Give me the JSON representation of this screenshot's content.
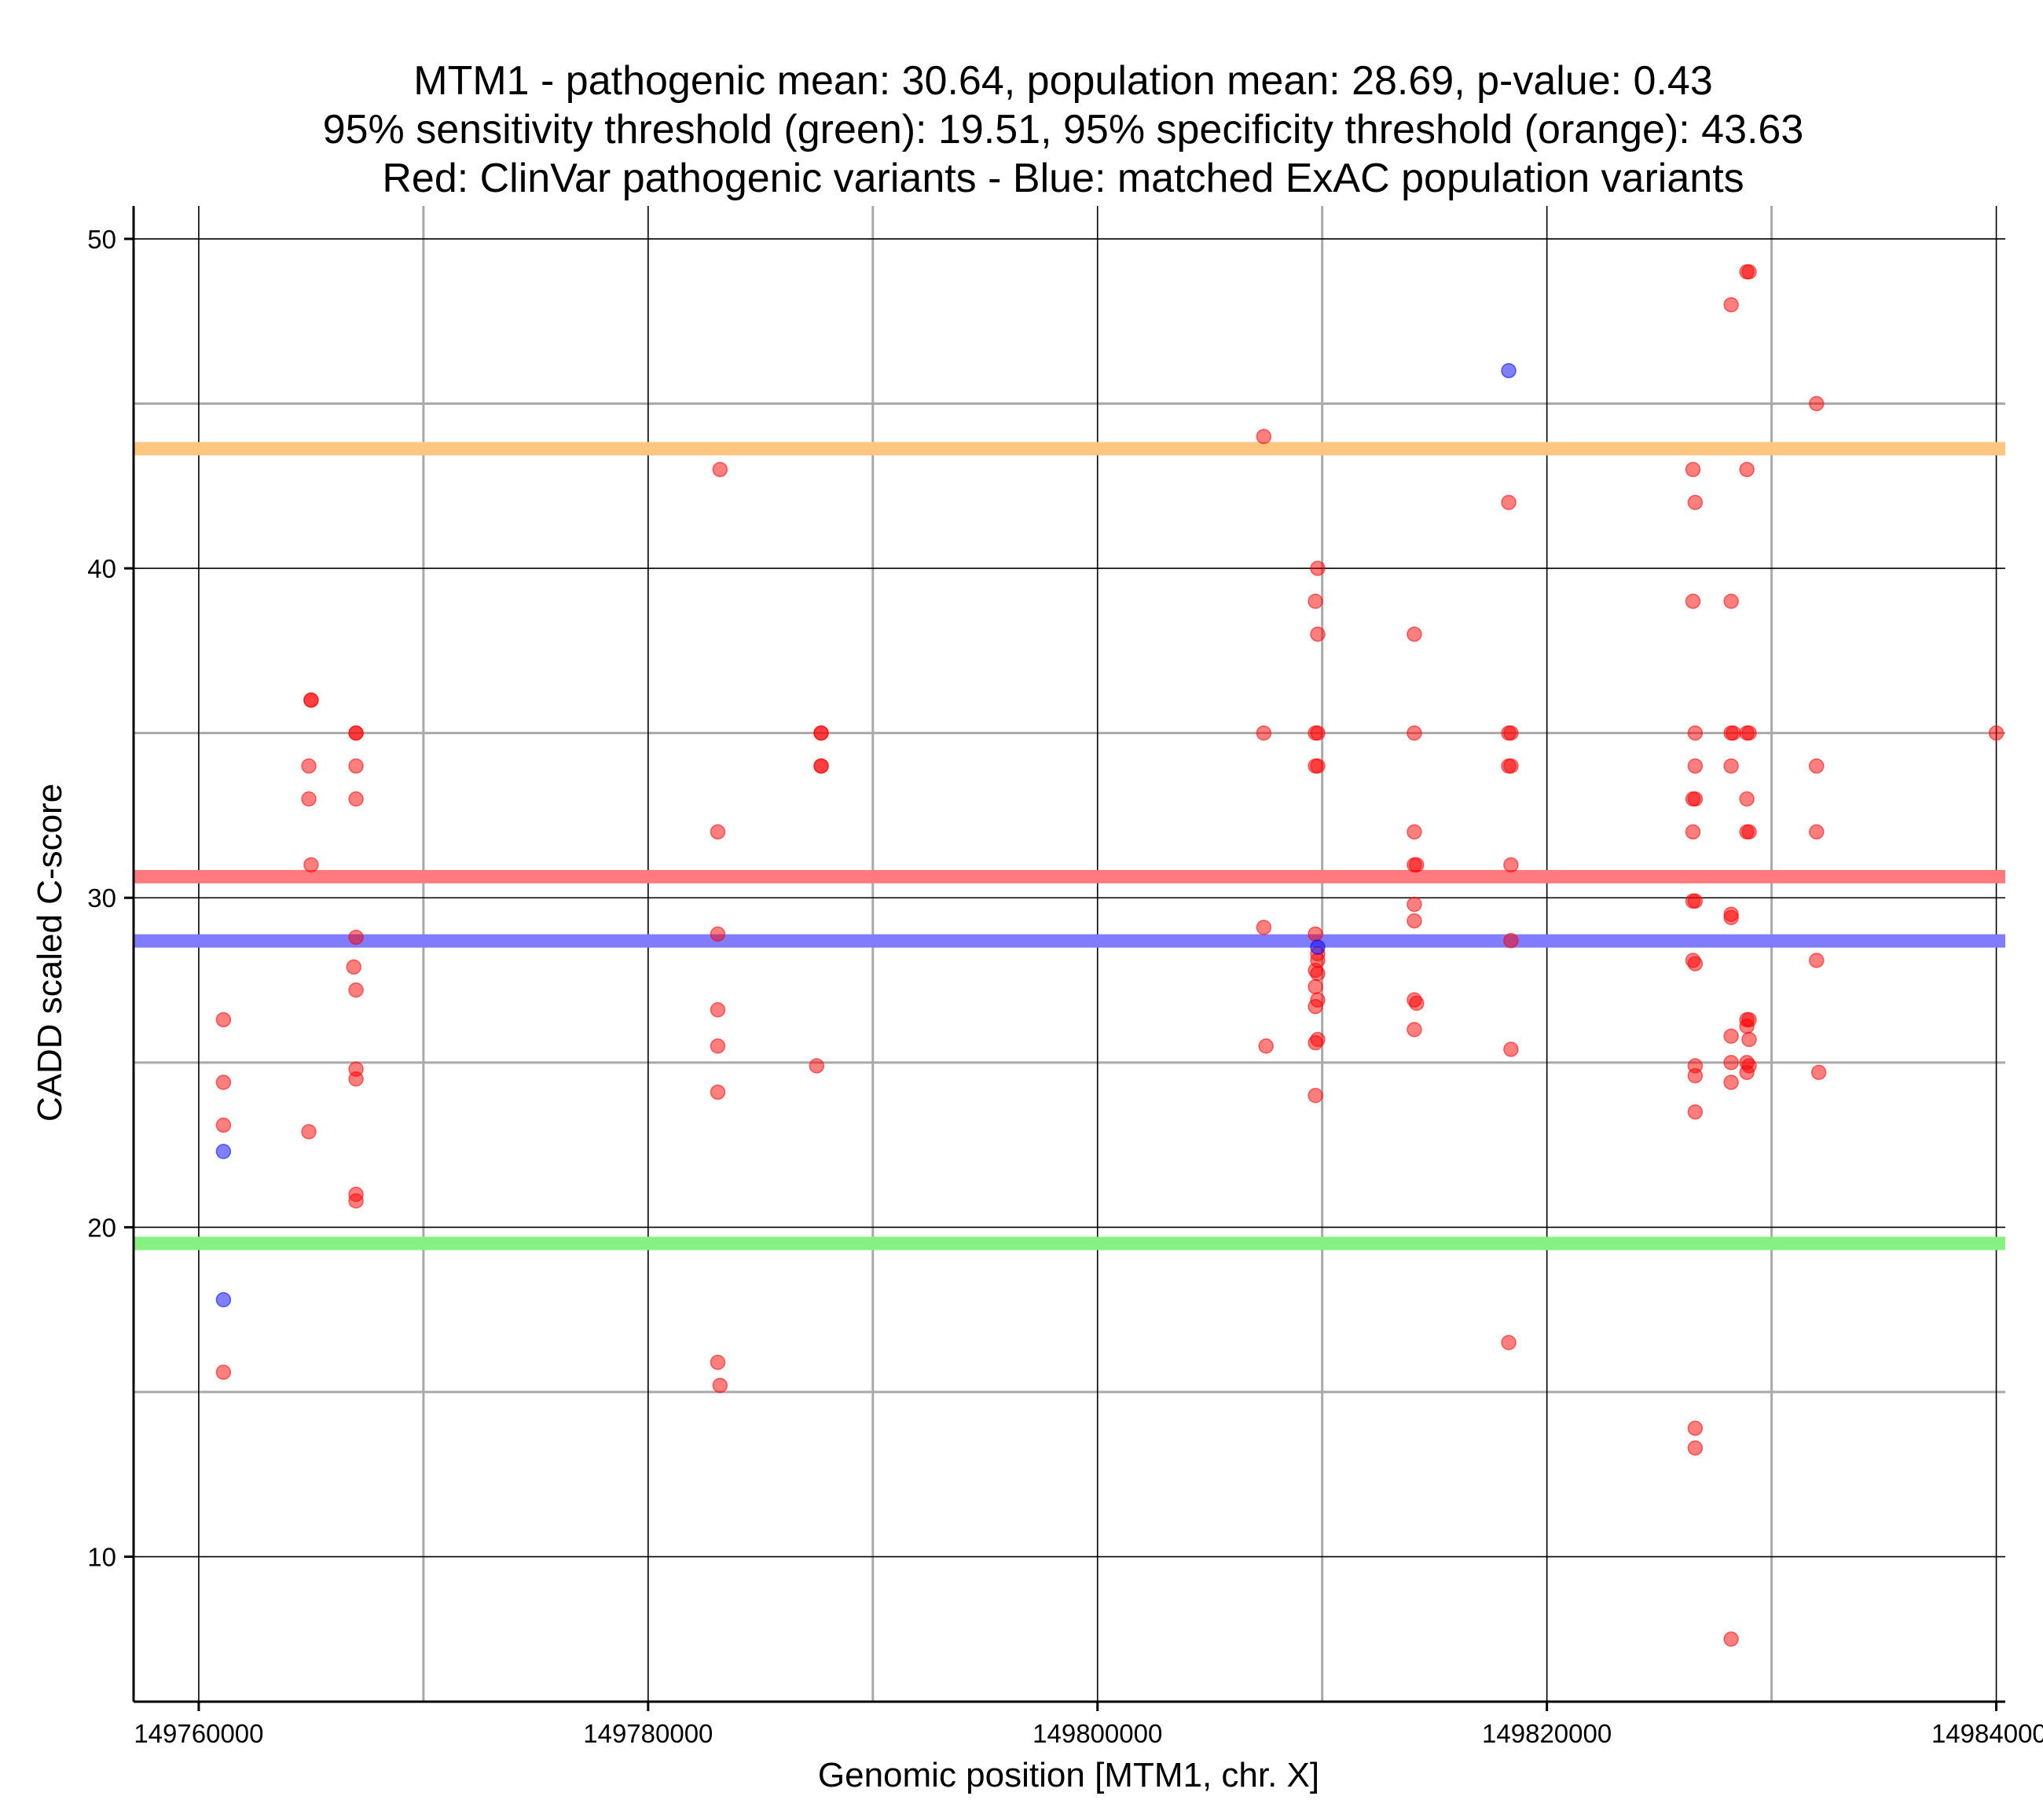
{
  "chart_data": {
    "type": "scatter",
    "title_lines": [
      "MTM1 - pathogenic mean: 30.64, population mean: 28.69, p-value: 0.43",
      "95% sensitivity threshold (green): 19.51, 95% specificity threshold (orange): 43.63",
      "Red: ClinVar pathogenic variants - Blue: matched ExAC population variants"
    ],
    "xlabel": "Genomic position [MTM1, chr. X]",
    "ylabel": "CADD scaled C-score",
    "xlim": [
      149757100,
      149840400
    ],
    "ylim": [
      5.6,
      51.0
    ],
    "x_ticks": [
      149760000,
      149780000,
      149800000,
      149820000,
      149840000
    ],
    "x_tick_labels": [
      "149760000",
      "149780000",
      "149800000",
      "149820000",
      "149840000"
    ],
    "x_minor_gridlines": [
      149770000,
      149790000,
      149810000,
      149830000
    ],
    "y_ticks": [
      10,
      20,
      30,
      40,
      50
    ],
    "y_tick_labels": [
      "10",
      "20",
      "30",
      "40",
      "50"
    ],
    "y_minor_gridlines": [
      15,
      25,
      35,
      45
    ],
    "grid": true,
    "reference_lines": [
      {
        "name": "95% specificity threshold",
        "value": 43.63,
        "color": "#ffc680"
      },
      {
        "name": "pathogenic mean",
        "value": 30.64,
        "color": "#ff7a7f"
      },
      {
        "name": "population mean",
        "value": 28.69,
        "color": "#7f7dfd"
      },
      {
        "name": "95% sensitivity threshold",
        "value": 19.51,
        "color": "#86f083"
      }
    ],
    "series": [
      {
        "name": "ClinVar pathogenic variants",
        "color": "#ff0000",
        "points": [
          [
            149761100,
            26.3
          ],
          [
            149761100,
            24.4
          ],
          [
            149761100,
            23.1
          ],
          [
            149761100,
            15.6
          ],
          [
            149765000,
            36
          ],
          [
            149765000,
            36
          ],
          [
            149764900,
            34
          ],
          [
            149764900,
            33
          ],
          [
            149765000,
            31
          ],
          [
            149764900,
            22.9
          ],
          [
            149767000,
            35
          ],
          [
            149767000,
            35
          ],
          [
            149767000,
            34
          ],
          [
            149767000,
            33
          ],
          [
            149767000,
            28.8
          ],
          [
            149766900,
            27.9
          ],
          [
            149767000,
            27.2
          ],
          [
            149767000,
            24.8
          ],
          [
            149767000,
            24.5
          ],
          [
            149767000,
            21
          ],
          [
            149767000,
            20.8
          ],
          [
            149783200,
            43
          ],
          [
            149783100,
            32
          ],
          [
            149783100,
            28.9
          ],
          [
            149783100,
            26.6
          ],
          [
            149783100,
            25.5
          ],
          [
            149783100,
            24.1
          ],
          [
            149783100,
            15.9
          ],
          [
            149783200,
            15.2
          ],
          [
            149787700,
            35
          ],
          [
            149787700,
            35
          ],
          [
            149787700,
            34
          ],
          [
            149787700,
            34
          ],
          [
            149787500,
            24.9
          ],
          [
            149807400,
            44
          ],
          [
            149807400,
            35
          ],
          [
            149807400,
            29.1
          ],
          [
            149807500,
            25.5
          ],
          [
            149809800,
            40
          ],
          [
            149809700,
            39
          ],
          [
            149809800,
            38
          ],
          [
            149809700,
            35
          ],
          [
            149809800,
            35
          ],
          [
            149809700,
            34
          ],
          [
            149809800,
            34
          ],
          [
            149809700,
            28.9
          ],
          [
            149809800,
            28.3
          ],
          [
            149809800,
            28.1
          ],
          [
            149809700,
            27.8
          ],
          [
            149809800,
            27.7
          ],
          [
            149809700,
            27.3
          ],
          [
            149809800,
            26.9
          ],
          [
            149809700,
            26.7
          ],
          [
            149809800,
            25.7
          ],
          [
            149809700,
            25.6
          ],
          [
            149809700,
            24
          ],
          [
            149814100,
            38
          ],
          [
            149814100,
            35
          ],
          [
            149814100,
            32
          ],
          [
            149814100,
            31
          ],
          [
            149814200,
            31
          ],
          [
            149814100,
            29.8
          ],
          [
            149814100,
            29.3
          ],
          [
            149814100,
            26.9
          ],
          [
            149814200,
            26.8
          ],
          [
            149814100,
            26
          ],
          [
            149818300,
            42
          ],
          [
            149818300,
            35
          ],
          [
            149818400,
            35
          ],
          [
            149818300,
            34
          ],
          [
            149818400,
            34
          ],
          [
            149818400,
            31
          ],
          [
            149818400,
            28.7
          ],
          [
            149818400,
            25.4
          ],
          [
            149818300,
            16.5
          ],
          [
            149826500,
            43
          ],
          [
            149826600,
            42
          ],
          [
            149826500,
            39
          ],
          [
            149826600,
            35
          ],
          [
            149826600,
            34
          ],
          [
            149826500,
            33
          ],
          [
            149826600,
            33
          ],
          [
            149826500,
            32
          ],
          [
            149826500,
            29.9
          ],
          [
            149826600,
            29.9
          ],
          [
            149826500,
            28.1
          ],
          [
            149826600,
            28
          ],
          [
            149826600,
            24.9
          ],
          [
            149826600,
            24.6
          ],
          [
            149826600,
            23.5
          ],
          [
            149826600,
            13.9
          ],
          [
            149826600,
            13.3
          ],
          [
            149828200,
            48
          ],
          [
            149828200,
            39
          ],
          [
            149828200,
            35
          ],
          [
            149828300,
            35
          ],
          [
            149828200,
            34
          ],
          [
            149828200,
            29.5
          ],
          [
            149828200,
            29.4
          ],
          [
            149828200,
            25.8
          ],
          [
            149828200,
            25
          ],
          [
            149828200,
            24.4
          ],
          [
            149828200,
            7.5
          ],
          [
            149828900,
            49
          ],
          [
            149829000,
            49
          ],
          [
            149828900,
            43
          ],
          [
            149828900,
            35
          ],
          [
            149829000,
            35
          ],
          [
            149828900,
            33
          ],
          [
            149828900,
            32
          ],
          [
            149829000,
            32
          ],
          [
            149828900,
            26.3
          ],
          [
            149829000,
            26.3
          ],
          [
            149828900,
            26.1
          ],
          [
            149829000,
            25.7
          ],
          [
            149828900,
            25
          ],
          [
            149829000,
            24.9
          ],
          [
            149828900,
            24.7
          ],
          [
            149832000,
            45
          ],
          [
            149832000,
            34
          ],
          [
            149832000,
            32
          ],
          [
            149832000,
            28.1
          ],
          [
            149832100,
            24.7
          ],
          [
            149840000,
            35
          ]
        ]
      },
      {
        "name": "matched ExAC population variants",
        "color": "#0000ff",
        "points": [
          [
            149818300,
            46
          ],
          [
            149809800,
            28.5
          ],
          [
            149761100,
            22.3
          ],
          [
            149761100,
            17.8
          ]
        ]
      }
    ]
  }
}
